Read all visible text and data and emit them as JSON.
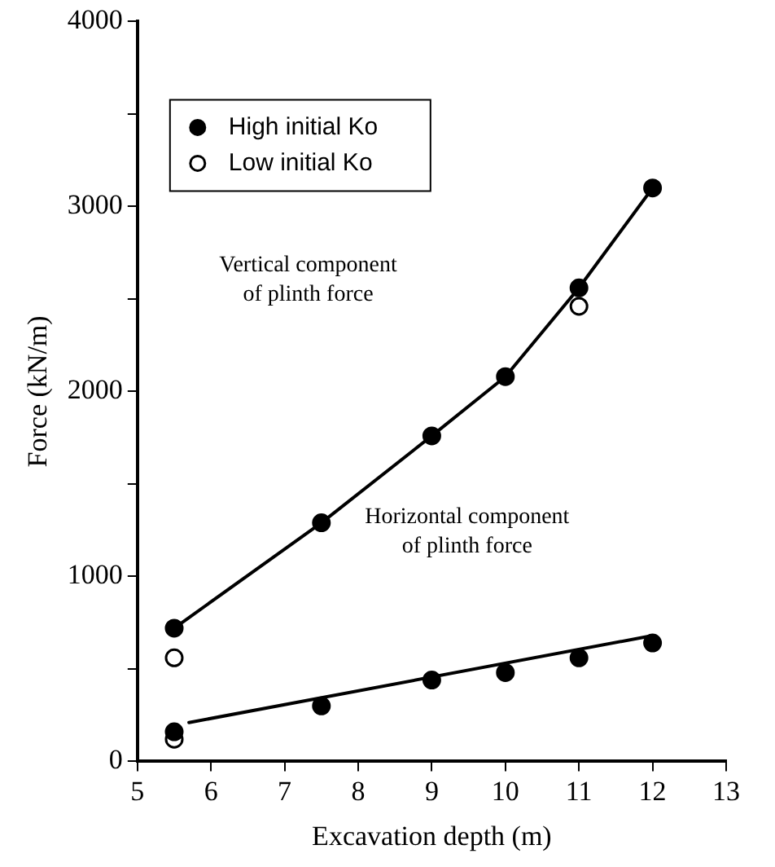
{
  "chart_data": {
    "type": "scatter",
    "xlabel": "Excavation depth (m)",
    "ylabel": "Force (kN/m)",
    "xlim": [
      5,
      13
    ],
    "xticks": [
      5,
      6,
      7,
      8,
      9,
      10,
      11,
      12,
      13
    ],
    "ylim": [
      0,
      4000
    ],
    "yticks": [
      0,
      {
        "value": 500,
        "label": null
      },
      1000,
      {
        "value": 1500,
        "label": null
      },
      2000,
      {
        "value": 2500,
        "label": null
      },
      3000,
      {
        "value": 3500,
        "label": null
      },
      4000
    ],
    "grid": false,
    "legend": "top left",
    "series": [
      {
        "name": "High initial Ko",
        "type": "scatter",
        "color": "#000000",
        "marker": "circle",
        "x": [
          5.5,
          7.5,
          9,
          10,
          11,
          12,
          5.5,
          7.5,
          9,
          10,
          11,
          12
        ],
        "values": [
          720,
          1290,
          1760,
          2080,
          2560,
          3100,
          160,
          300,
          440,
          480,
          560,
          640
        ]
      },
      {
        "name": "Low initial Ko",
        "type": "scatter",
        "color": "#000000",
        "marker": "circle-open",
        "x": [
          5.5,
          5.5,
          11
        ],
        "values": [
          560,
          120,
          2460
        ]
      },
      {
        "type": "line",
        "color": "#000000",
        "marker": "none",
        "x": [
          5.5,
          7.5,
          9,
          10,
          11,
          12
        ],
        "values": [
          720,
          1290,
          1760,
          2080,
          2560,
          3100
        ]
      },
      {
        "type": "line",
        "color": "#000000",
        "marker": "none",
        "x": [
          5.7,
          12
        ],
        "values": [
          210,
          680
        ]
      }
    ],
    "annotations": [
      "Vertical component\nof plinth force",
      "Horizontal component\nof plinth force"
    ]
  }
}
